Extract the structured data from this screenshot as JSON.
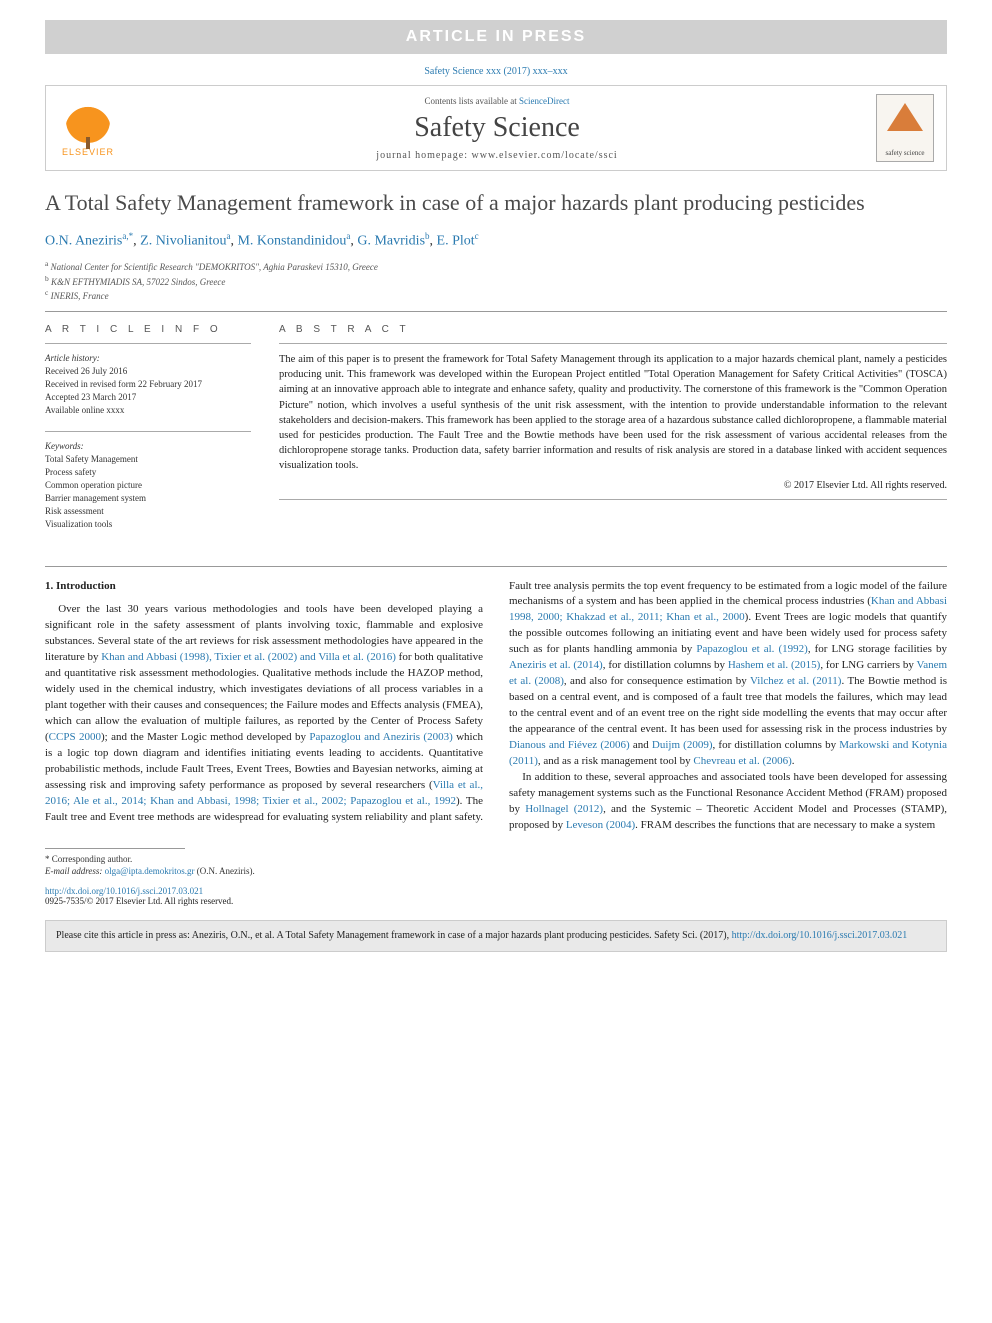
{
  "banner": "ARTICLE IN PRESS",
  "citation_line": "Safety Science xxx (2017) xxx–xxx",
  "header": {
    "publisher": "ELSEVIER",
    "contents_prefix": "Contents lists available at ",
    "contents_link": "ScienceDirect",
    "journal": "Safety Science",
    "homepage_prefix": "journal homepage: ",
    "homepage_url": "www.elsevier.com/locate/ssci",
    "cover_label": "safety science"
  },
  "title": "A Total Safety Management framework in case of a major hazards plant producing pesticides",
  "authors_html": "O.N. Aneziris",
  "authors": [
    {
      "name": "O.N. Aneziris",
      "sup": "a,*"
    },
    {
      "name": "Z. Nivolianitou",
      "sup": "a"
    },
    {
      "name": "M. Konstandinidou",
      "sup": "a"
    },
    {
      "name": "G. Mavridis",
      "sup": "b"
    },
    {
      "name": "E. Plot",
      "sup": "c"
    }
  ],
  "affiliations": [
    {
      "sup": "a",
      "text": "National Center for Scientific Research \"DEMOKRITOS\", Aghia Paraskevi 15310, Greece"
    },
    {
      "sup": "b",
      "text": "K&N EFTHYMIADIS SA, 57022 Sindos, Greece"
    },
    {
      "sup": "c",
      "text": "INERIS, France"
    }
  ],
  "info": {
    "label": "A R T I C L E   I N F O",
    "history_heading": "Article history:",
    "history": [
      "Received 26 July 2016",
      "Received in revised form 22 February 2017",
      "Accepted 23 March 2017",
      "Available online xxxx"
    ],
    "keywords_heading": "Keywords:",
    "keywords": [
      "Total Safety Management",
      "Process safety",
      "Common operation picture",
      "Barrier management system",
      "Risk assessment",
      "Visualization tools"
    ]
  },
  "abstract": {
    "label": "A B S T R A C T",
    "text": "The aim of this paper is to present the framework for Total Safety Management through its application to a major hazards chemical plant, namely a pesticides producing unit. This framework was developed within the European Project entitled \"Total Operation Management for Safety Critical Activities\" (TOSCA) aiming at an innovative approach able to integrate and enhance safety, quality and productivity. The cornerstone of this framework is the \"Common Operation Picture\" notion, which involves a useful synthesis of the unit risk assessment, with the intention to provide understandable information to the relevant stakeholders and decision-makers. This framework has been applied to the storage area of a hazardous substance called dichloropropene, a flammable material used for pesticides production. The Fault Tree and the Bowtie methods have been used for the risk assessment of various accidental releases from the dichloropropene storage tanks. Production data, safety barrier information and results of risk analysis are stored in a database linked with accident sequences visualization tools.",
    "copyright": "© 2017 Elsevier Ltd. All rights reserved."
  },
  "body": {
    "section_number": "1.",
    "section_title": "Introduction",
    "col1_p1_a": "Over the last 30 years various methodologies and tools have been developed playing a significant role in the safety assessment of plants involving toxic, flammable and explosive substances. Several state of the art reviews for risk assessment methodologies have appeared in the literature by ",
    "col1_ref1": "Khan and Abbasi (1998), Tixier et al. (2002) and Villa et al. (2016)",
    "col1_p1_b": " for both qualitative and quantitative risk assessment methodologies. Qualitative methods include the HAZOP method, widely used in the chemical industry, which investigates deviations of all process variables in a plant together with their causes and consequences; the Failure modes and Effects analysis (FMEA), which can allow the evaluation of multiple failures, as reported by the Center of Process Safety (",
    "col1_ref2": "CCPS 2000",
    "col1_p1_c": "); and the Master Logic method developed by ",
    "col1_ref3": "Papazoglou and Aneziris (2003)",
    "col1_p1_d": " which is a logic top down diagram and identifies initiating events leading to accidents. Quantitative probabilistic methods, include Fault Trees, Event Trees, Bowties and Bayesian networks, aiming at assessing risk and improving safety performance as proposed by several researchers (",
    "col1_ref4": "Villa et al., 2016; Ale et al., 2014; Khan and Abbasi, 1998; Tixier et al., 2002; Papazoglou et al., 1992",
    "col1_p1_e": "). The Fault tree and Event tree methods",
    "col2_p1_a": "are widespread for evaluating system reliability and plant safety. Fault tree analysis permits the top event frequency to be estimated from a logic model of the failure mechanisms of a system and has been applied in the chemical process industries (",
    "col2_ref1": "Khan and Abbasi 1998, 2000; Khakzad et al., 2011; Khan et al., 2000",
    "col2_p1_b": "). Event Trees are logic models that quantify the possible outcomes following an initiating event and have been widely used for process safety such as for plants handling ammonia by ",
    "col2_ref2": "Papazoglou et al. (1992)",
    "col2_p1_c": ", for LNG storage facilities by ",
    "col2_ref3": "Aneziris et al. (2014)",
    "col2_p1_d": ", for distillation columns by ",
    "col2_ref4": "Hashem et al. (2015)",
    "col2_p1_e": ", for LNG carriers by ",
    "col2_ref5": "Vanem et al. (2008)",
    "col2_p1_f": ", and also for consequence estimation by ",
    "col2_ref6": "Vilchez et al. (2011)",
    "col2_p1_g": ". The Bowtie method is based on a central event, and is composed of a fault tree that models the failures, which may lead to the central event and of an event tree on the right side modelling the events that may occur after the appearance of the central event. It has been used for assessing risk in the process industries by ",
    "col2_ref7": "Dianous and Fiévez (2006)",
    "col2_p1_h": " and ",
    "col2_ref8": "Duijm (2009)",
    "col2_p1_i": ", for distillation columns by ",
    "col2_ref9": "Markowski and Kotynia (2011)",
    "col2_p1_j": ", and as a risk management tool by ",
    "col2_ref10": "Chevreau et al. (2006)",
    "col2_p1_k": ".",
    "col2_p2_a": "In addition to these, several approaches and associated tools have been developed for assessing safety management systems such as the Functional Resonance Accident Method (FRAM) proposed by ",
    "col2_ref11": "Hollnagel (2012)",
    "col2_p2_b": ", and the Systemic – Theoretic Accident Model and Processes (STAMP), proposed by ",
    "col2_ref12": "Leveson (2004)",
    "col2_p2_c": ". FRAM describes the functions that are necessary to make a system"
  },
  "footnotes": {
    "corr_marker": "* Corresponding author.",
    "email_label": "E-mail address:",
    "email": "olga@ipta.demokritos.gr",
    "email_name": "(O.N. Aneziris)."
  },
  "doi": {
    "url": "http://dx.doi.org/10.1016/j.ssci.2017.03.021",
    "issn_line": "0925-7535/© 2017 Elsevier Ltd. All rights reserved."
  },
  "citebox": {
    "prefix": "Please cite this article in press as: Aneziris, O.N., et al. A Total Safety Management framework in case of a major hazards plant producing pesticides. Safety Sci. (2017), ",
    "link": "http://dx.doi.org/10.1016/j.ssci.2017.03.021"
  },
  "colors": {
    "banner_bg": "#d0d0d0",
    "banner_text": "#ffffff",
    "link": "#2a7ab0",
    "elsevier_orange": "#f7941e",
    "cover_triangle": "#d97d3a",
    "rule": "#999999",
    "citebox_bg": "#e9e9e9"
  }
}
